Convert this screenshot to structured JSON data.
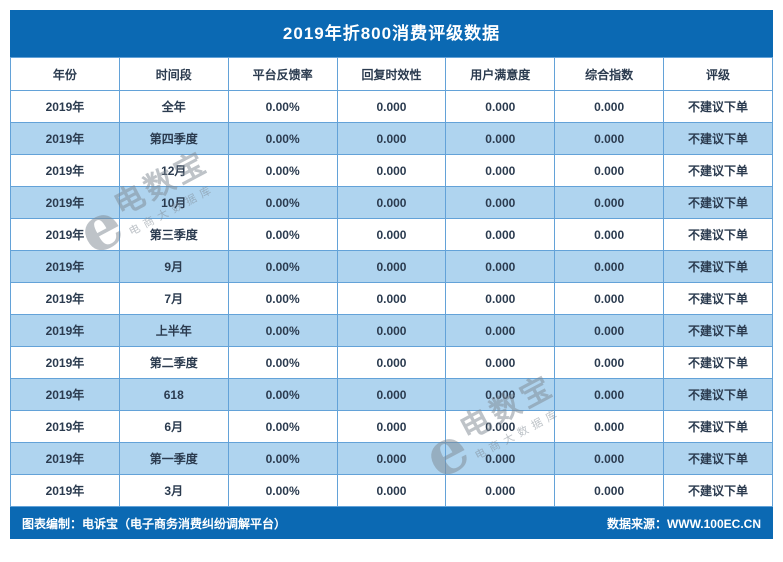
{
  "chart_data": {
    "type": "table",
    "title": "2019年折800消费评级数据",
    "columns": [
      "年份",
      "时间段",
      "平台反馈率",
      "回复时效性",
      "用户满意度",
      "综合指数",
      "评级"
    ],
    "rows": [
      [
        "2019年",
        "全年",
        "0.00%",
        "0.000",
        "0.000",
        "0.000",
        "不建议下单"
      ],
      [
        "2019年",
        "第四季度",
        "0.00%",
        "0.000",
        "0.000",
        "0.000",
        "不建议下单"
      ],
      [
        "2019年",
        "12月",
        "0.00%",
        "0.000",
        "0.000",
        "0.000",
        "不建议下单"
      ],
      [
        "2019年",
        "10月",
        "0.00%",
        "0.000",
        "0.000",
        "0.000",
        "不建议下单"
      ],
      [
        "2019年",
        "第三季度",
        "0.00%",
        "0.000",
        "0.000",
        "0.000",
        "不建议下单"
      ],
      [
        "2019年",
        "9月",
        "0.00%",
        "0.000",
        "0.000",
        "0.000",
        "不建议下单"
      ],
      [
        "2019年",
        "7月",
        "0.00%",
        "0.000",
        "0.000",
        "0.000",
        "不建议下单"
      ],
      [
        "2019年",
        "上半年",
        "0.00%",
        "0.000",
        "0.000",
        "0.000",
        "不建议下单"
      ],
      [
        "2019年",
        "第二季度",
        "0.00%",
        "0.000",
        "0.000",
        "0.000",
        "不建议下单"
      ],
      [
        "2019年",
        "618",
        "0.00%",
        "0.000",
        "0.000",
        "0.000",
        "不建议下单"
      ],
      [
        "2019年",
        "6月",
        "0.00%",
        "0.000",
        "0.000",
        "0.000",
        "不建议下单"
      ],
      [
        "2019年",
        "第一季度",
        "0.00%",
        "0.000",
        "0.000",
        "0.000",
        "不建议下单"
      ],
      [
        "2019年",
        "3月",
        "0.00%",
        "0.000",
        "0.000",
        "0.000",
        "不建议下单"
      ]
    ],
    "footer_left": "图表编制：电诉宝（电子商务消费纠纷调解平台）",
    "footer_right": "数据来源：WWW.100EC.CN",
    "layout": {
      "legend": "none",
      "grid": "all-cell-borders",
      "striped": "even-rows-light-blue"
    }
  },
  "watermark": {
    "logo_letter": "e",
    "brand": "电数宝",
    "tagline": "电商大数据库"
  },
  "colors": {
    "primary_blue": "#0b69b3",
    "row_alt_blue": "#afd4ef",
    "border_blue": "#63a2d8",
    "text_dark": "#2b3b4f",
    "title_text": "#ffffff"
  }
}
